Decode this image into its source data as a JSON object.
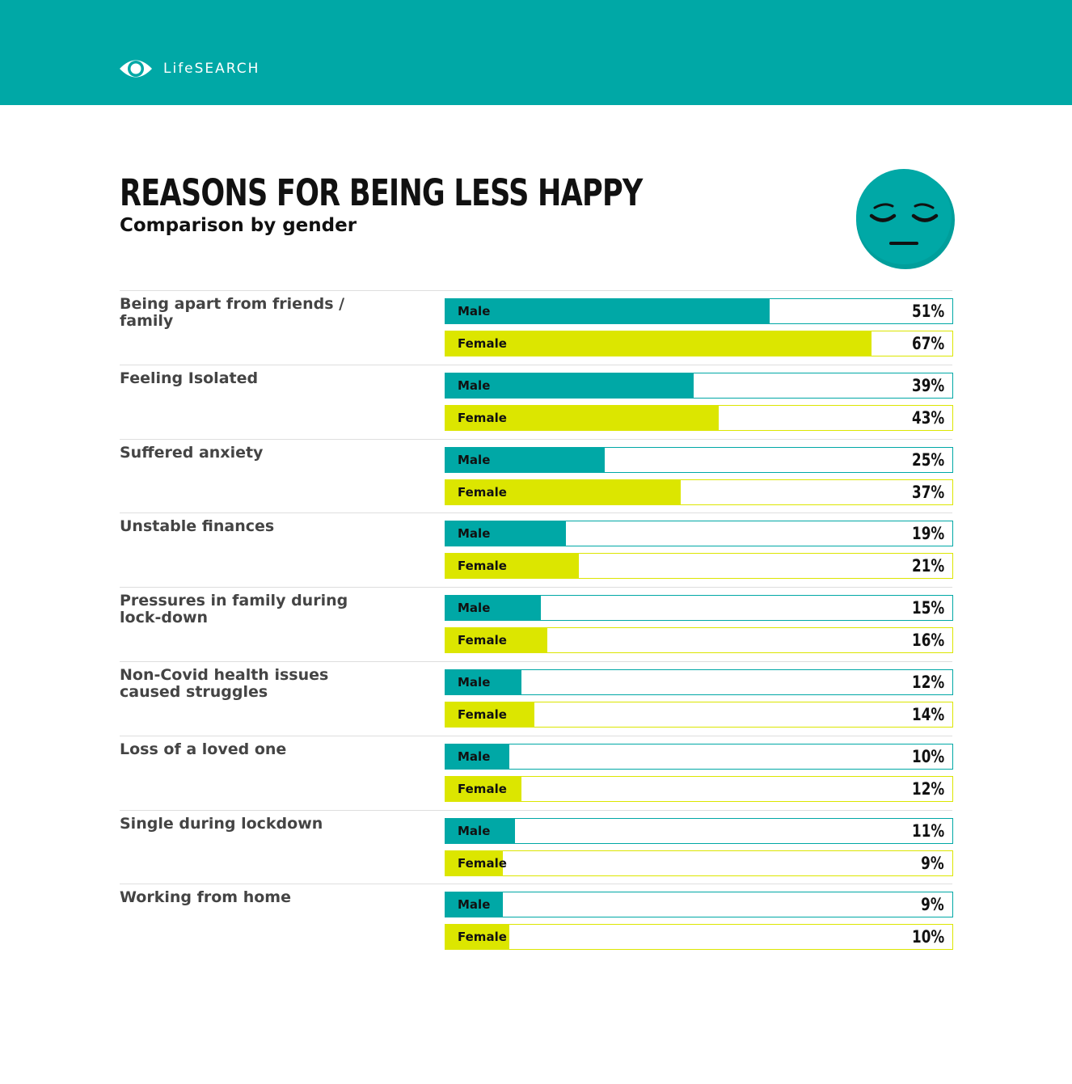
{
  "brand": {
    "name": "LifeSEARCH",
    "bar_color": "#00a8a6"
  },
  "icon": "pensive-face-icon",
  "colors": {
    "male": "#00a8a6",
    "female": "#dce600"
  },
  "chart_data": {
    "type": "bar",
    "orientation": "horizontal",
    "title": "REASONS FOR BEING LESS HAPPY",
    "subtitle": "Comparison by gender",
    "categories": [
      "Being apart from friends / family",
      "Feeling Isolated",
      "Suffered anxiety",
      "Unstable finances",
      "Pressures in family during lock-down",
      "Non-Covid health issues caused struggles",
      "Loss of a loved one",
      "Single during lockdown",
      "Working from home"
    ],
    "series": [
      {
        "name": "Male",
        "values": [
          51,
          39,
          25,
          19,
          15,
          12,
          10,
          11,
          9
        ]
      },
      {
        "name": "Female",
        "values": [
          67,
          43,
          37,
          21,
          16,
          14,
          12,
          9,
          10
        ]
      }
    ],
    "value_suffix": "%",
    "xlim": [
      0,
      80
    ]
  }
}
